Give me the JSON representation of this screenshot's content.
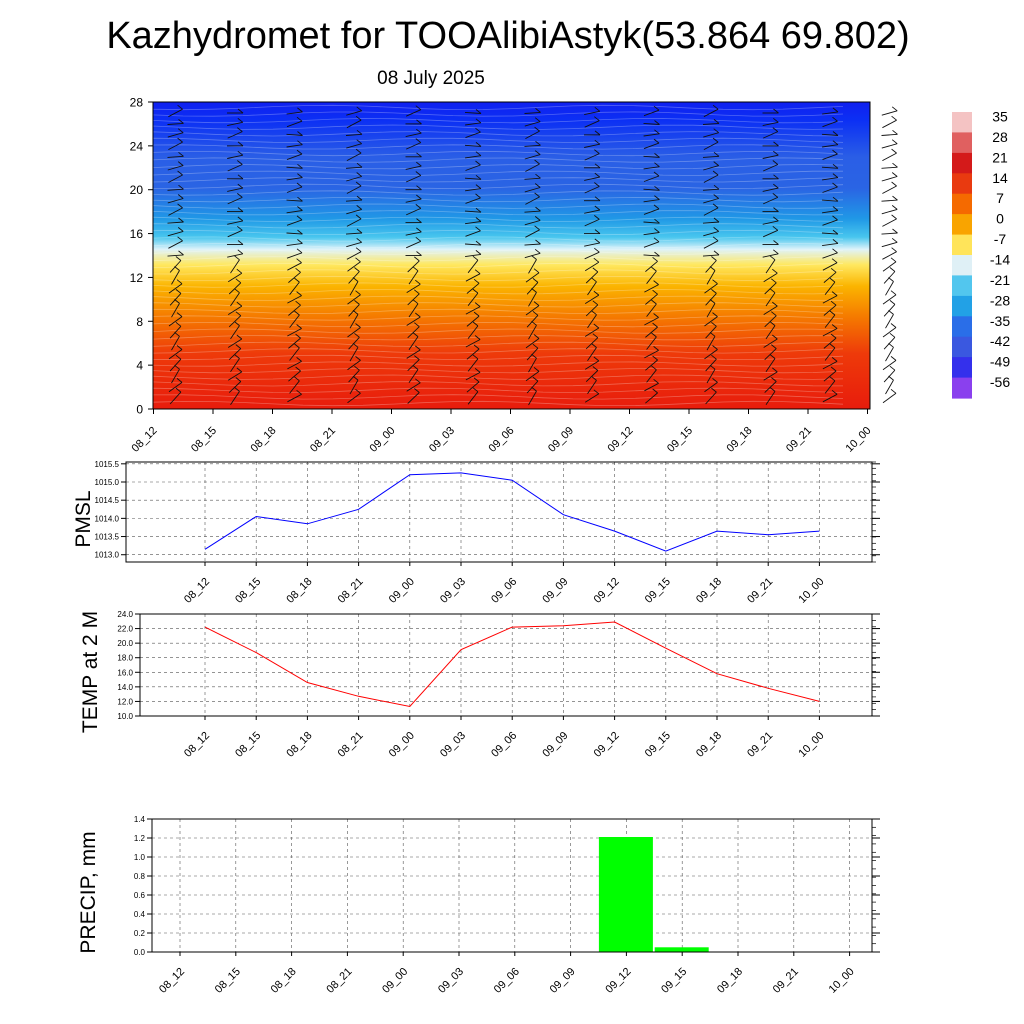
{
  "title": "Kazhydromet for TOOAlibiAstyk(53.864 69.802)",
  "subtitle": "08 July 2025",
  "time_labels": [
    "08_12",
    "08_15",
    "08_18",
    "08_21",
    "09_00",
    "09_03",
    "09_06",
    "09_09",
    "09_12",
    "09_15",
    "09_18",
    "09_21",
    "10_00"
  ],
  "colorbar": {
    "labels": [
      "35",
      "28",
      "21",
      "14",
      "7",
      "0",
      "-7",
      "-14",
      "-21",
      "-28",
      "-35",
      "-42",
      "-49",
      "-56"
    ],
    "colors": [
      "#f4c3c3",
      "#e06060",
      "#d41a1a",
      "#e93a10",
      "#f56a00",
      "#f9a400",
      "#ffe45a",
      "#dff0f6",
      "#52c6ee",
      "#22a1e6",
      "#2a6ee8",
      "#3a58e0",
      "#3430ec",
      "#8a40ee"
    ]
  },
  "chart_data": [
    {
      "type": "heatmap",
      "title": "",
      "ylim": [
        0,
        28
      ],
      "yticks": [
        0,
        4,
        8,
        12,
        16,
        20,
        24,
        28
      ],
      "x": [
        "08_12",
        "08_15",
        "08_18",
        "08_21",
        "09_00",
        "09_03",
        "09_06",
        "09_09",
        "09_12",
        "09_15",
        "09_18",
        "09_21",
        "10_00"
      ],
      "value_range": [
        -56,
        35
      ],
      "approx_values_by_level": [
        {
          "level": 0,
          "value": 24
        },
        {
          "level": 2,
          "value": 20
        },
        {
          "level": 4,
          "value": 14
        },
        {
          "level": 6,
          "value": 10
        },
        {
          "level": 8,
          "value": 4
        },
        {
          "level": 10,
          "value": -2
        },
        {
          "level": 12,
          "value": -12
        },
        {
          "level": 14,
          "value": -22
        },
        {
          "level": 16,
          "value": -32
        },
        {
          "level": 18,
          "value": -40
        },
        {
          "level": 20,
          "value": -46
        },
        {
          "level": 22,
          "value": -48
        },
        {
          "level": 24,
          "value": -52
        },
        {
          "level": 26,
          "value": -56
        },
        {
          "level": 28,
          "value": -58
        }
      ]
    },
    {
      "type": "line",
      "ylabel": "PMSL",
      "x": [
        "08_12",
        "08_15",
        "08_18",
        "08_21",
        "09_00",
        "09_03",
        "09_06",
        "09_09",
        "09_12",
        "09_15",
        "09_18",
        "09_21",
        "10_00"
      ],
      "values": [
        1013.15,
        1014.05,
        1013.85,
        1014.25,
        1015.2,
        1015.25,
        1015.05,
        1014.1,
        1013.65,
        1013.1,
        1013.65,
        1013.55,
        1013.65
      ],
      "ylim": [
        1012.8,
        1015.55
      ],
      "yticks": [
        "1013.0",
        "1013.5",
        "1014.0",
        "1014.5",
        "1015.0",
        "1015.5"
      ],
      "color": "#0000ff"
    },
    {
      "type": "line",
      "ylabel": "TEMP at 2 M",
      "x": [
        "08_12",
        "08_15",
        "08_18",
        "08_21",
        "09_00",
        "09_03",
        "09_06",
        "09_09",
        "09_12",
        "09_15",
        "09_18",
        "09_21",
        "10_00"
      ],
      "values": [
        22.2,
        18.7,
        14.6,
        12.7,
        11.3,
        19.1,
        22.2,
        22.4,
        22.9,
        19.3,
        15.8,
        13.8,
        12.0
      ],
      "ylim": [
        10.0,
        24.0
      ],
      "yticks": [
        "10.0",
        "12.0",
        "14.0",
        "16.0",
        "18.0",
        "20.0",
        "22.0",
        "24.0"
      ],
      "color": "#ff0000"
    },
    {
      "type": "bar",
      "ylabel": "PRECIP, mm",
      "x": [
        "08_12",
        "08_15",
        "08_18",
        "08_21",
        "09_00",
        "09_03",
        "09_06",
        "09_09",
        "09_12",
        "09_15",
        "09_18",
        "09_21",
        "10_00"
      ],
      "values": [
        0,
        0,
        0,
        0,
        0,
        0,
        0,
        0,
        1.21,
        0.05,
        0,
        0,
        0
      ],
      "ylim": [
        0,
        1.4
      ],
      "yticks": [
        "0.0",
        "0.2",
        "0.4",
        "0.6",
        "0.8",
        "1.0",
        "1.2",
        "1.4"
      ],
      "color": "#00ff00"
    }
  ]
}
